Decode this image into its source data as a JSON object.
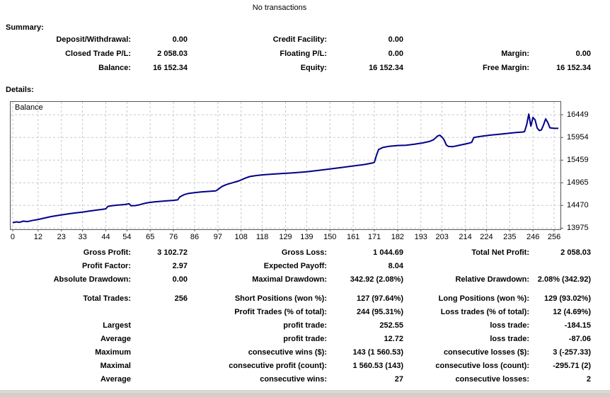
{
  "title": "No transactions",
  "summary": {
    "heading": "Summary:",
    "rows": [
      {
        "cells": [
          {
            "label": "Deposit/Withdrawal:",
            "value": "0.00"
          },
          {
            "label": "Credit Facility:",
            "value": "0.00"
          },
          {
            "label": "",
            "value": ""
          }
        ]
      },
      {
        "cells": [
          {
            "label": "Closed Trade P/L:",
            "value": "2 058.03"
          },
          {
            "label": "Floating P/L:",
            "value": "0.00"
          },
          {
            "label": "Margin:",
            "value": "0.00"
          }
        ]
      },
      {
        "cells": [
          {
            "label": "Balance:",
            "value": "16 152.34"
          },
          {
            "label": "Equity:",
            "value": "16 152.34"
          },
          {
            "label": "Free Margin:",
            "value": "16 152.34"
          }
        ]
      }
    ]
  },
  "details": {
    "heading": "Details:",
    "rows": [
      {
        "cells": [
          {
            "label": "Gross Profit:",
            "value": "3 102.72"
          },
          {
            "label": "Gross Loss:",
            "value": "1 044.69"
          },
          {
            "label": "Total Net Profit:",
            "value": "2 058.03"
          }
        ]
      },
      {
        "cells": [
          {
            "label": "Profit Factor:",
            "value": "2.97"
          },
          {
            "label": "Expected Payoff:",
            "value": "8.04"
          },
          {
            "label": "",
            "value": ""
          }
        ]
      },
      {
        "cells": [
          {
            "label": "Absolute Drawdown:",
            "value": "0.00"
          },
          {
            "label": "Maximal Drawdown:",
            "value": "342.92 (2.08%)"
          },
          {
            "label": "Relative Drawdown:",
            "value": "2.08% (342.92)"
          }
        ]
      },
      {
        "cells": [
          {
            "label": "Total Trades:",
            "value": "256"
          },
          {
            "label": "Short Positions (won %):",
            "value": "127 (97.64%)"
          },
          {
            "label": "Long Positions (won %):",
            "value": "129 (93.02%)"
          }
        ]
      },
      {
        "cells": [
          {
            "label": "",
            "value": ""
          },
          {
            "label": "Profit Trades (% of total):",
            "value": "244 (95.31%)"
          },
          {
            "label": "Loss trades (% of total):",
            "value": "12 (4.69%)"
          }
        ]
      },
      {
        "cells": [
          {
            "label": "Largest",
            "value": ""
          },
          {
            "label": "profit trade:",
            "value": "252.55"
          },
          {
            "label": "loss trade:",
            "value": "-184.15"
          }
        ]
      },
      {
        "cells": [
          {
            "label": "Average",
            "value": ""
          },
          {
            "label": "profit trade:",
            "value": "12.72"
          },
          {
            "label": "loss trade:",
            "value": "-87.06"
          }
        ]
      },
      {
        "cells": [
          {
            "label": "Maximum",
            "value": ""
          },
          {
            "label": "consecutive wins ($):",
            "value": "143 (1 560.53)"
          },
          {
            "label": "consecutive losses ($):",
            "value": "3 (-257.33)"
          }
        ]
      },
      {
        "cells": [
          {
            "label": "Maximal",
            "value": ""
          },
          {
            "label": "consecutive profit (count):",
            "value": "1 560.53 (143)"
          },
          {
            "label": "consecutive loss (count):",
            "value": "-295.71 (2)"
          }
        ]
      },
      {
        "cells": [
          {
            "label": "Average",
            "value": ""
          },
          {
            "label": "consecutive wins:",
            "value": "27"
          },
          {
            "label": "consecutive losses:",
            "value": "2"
          }
        ]
      }
    ]
  },
  "chart_data": {
    "type": "line",
    "title": "",
    "legend_label": "Balance",
    "xlabel": "",
    "ylabel": "",
    "x_ticks": [
      0,
      12,
      23,
      33,
      44,
      54,
      65,
      76,
      86,
      97,
      108,
      118,
      129,
      139,
      150,
      161,
      171,
      182,
      193,
      203,
      214,
      224,
      235,
      246,
      256
    ],
    "y_ticks": [
      16449,
      15954,
      15459,
      14965,
      14470,
      13975
    ],
    "xlim": [
      -1,
      259
    ],
    "ylim": [
      13950,
      16730
    ],
    "line_color": "#000089",
    "grid_color": "#c9c9c9",
    "series": [
      {
        "name": "Balance",
        "points": [
          [
            0,
            14095
          ],
          [
            2,
            14112
          ],
          [
            3,
            14100
          ],
          [
            5,
            14128
          ],
          [
            7,
            14118
          ],
          [
            9,
            14140
          ],
          [
            12,
            14165
          ],
          [
            15,
            14196
          ],
          [
            18,
            14226
          ],
          [
            21,
            14250
          ],
          [
            24,
            14272
          ],
          [
            27,
            14292
          ],
          [
            30,
            14310
          ],
          [
            33,
            14326
          ],
          [
            36,
            14346
          ],
          [
            39,
            14366
          ],
          [
            42,
            14382
          ],
          [
            44,
            14396
          ],
          [
            45,
            14450
          ],
          [
            47,
            14466
          ],
          [
            50,
            14478
          ],
          [
            53,
            14490
          ],
          [
            55,
            14508
          ],
          [
            56,
            14462
          ],
          [
            58,
            14468
          ],
          [
            60,
            14486
          ],
          [
            62,
            14512
          ],
          [
            64,
            14530
          ],
          [
            67,
            14548
          ],
          [
            70,
            14560
          ],
          [
            73,
            14572
          ],
          [
            76,
            14582
          ],
          [
            78,
            14592
          ],
          [
            79,
            14658
          ],
          [
            81,
            14706
          ],
          [
            83,
            14732
          ],
          [
            86,
            14748
          ],
          [
            89,
            14766
          ],
          [
            93,
            14778
          ],
          [
            96,
            14788
          ],
          [
            97,
            14818
          ],
          [
            99,
            14886
          ],
          [
            101,
            14926
          ],
          [
            104,
            14966
          ],
          [
            107,
            15008
          ],
          [
            110,
            15066
          ],
          [
            112,
            15100
          ],
          [
            115,
            15122
          ],
          [
            118,
            15138
          ],
          [
            122,
            15152
          ],
          [
            127,
            15166
          ],
          [
            132,
            15180
          ],
          [
            139,
            15206
          ],
          [
            145,
            15238
          ],
          [
            150,
            15268
          ],
          [
            156,
            15302
          ],
          [
            161,
            15332
          ],
          [
            166,
            15362
          ],
          [
            170,
            15396
          ],
          [
            171,
            15412
          ],
          [
            172,
            15566
          ],
          [
            173,
            15690
          ],
          [
            175,
            15736
          ],
          [
            178,
            15762
          ],
          [
            182,
            15778
          ],
          [
            186,
            15784
          ],
          [
            190,
            15806
          ],
          [
            194,
            15836
          ],
          [
            197,
            15866
          ],
          [
            199,
            15906
          ],
          [
            201,
            15988
          ],
          [
            202,
            16002
          ],
          [
            203,
            15962
          ],
          [
            204,
            15900
          ],
          [
            205,
            15792
          ],
          [
            206,
            15758
          ],
          [
            208,
            15752
          ],
          [
            210,
            15772
          ],
          [
            213,
            15802
          ],
          [
            216,
            15832
          ],
          [
            217,
            15846
          ],
          [
            218,
            15952
          ],
          [
            220,
            15968
          ],
          [
            223,
            15988
          ],
          [
            226,
            16006
          ],
          [
            230,
            16022
          ],
          [
            234,
            16042
          ],
          [
            238,
            16062
          ],
          [
            241,
            16072
          ],
          [
            242,
            16082
          ],
          [
            243,
            16230
          ],
          [
            244,
            16465
          ],
          [
            245,
            16200
          ],
          [
            246,
            16390
          ],
          [
            247,
            16340
          ],
          [
            248,
            16160
          ],
          [
            249,
            16105
          ],
          [
            250,
            16120
          ],
          [
            251,
            16230
          ],
          [
            252,
            16360
          ],
          [
            253,
            16280
          ],
          [
            254,
            16165
          ],
          [
            256,
            16152
          ],
          [
            258,
            16152
          ]
        ]
      }
    ]
  }
}
